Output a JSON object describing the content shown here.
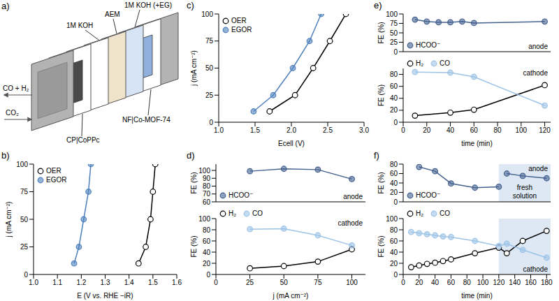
{
  "diagram": {
    "panel": "a)",
    "labels": {
      "products": "CO + H₂",
      "feed": "CO₂",
      "cathode": "CP|CoPPc",
      "catholyte": "1M KOH",
      "membrane": "AEM",
      "anolyte": "1M KOH (+EG)",
      "anode": "NF|Co-MOF-74"
    }
  },
  "chart_data": [
    {
      "panel": "b)",
      "type": "line",
      "x_label": "E (V vs. RHE −iR)",
      "y_label": "j (mA cm⁻²)",
      "xlim": [
        1.0,
        1.6
      ],
      "xticks": [
        {
          "value": 1,
          "label": "1.0"
        },
        {
          "value": 1.1,
          "label": "1.1"
        },
        {
          "value": 1.2,
          "label": "1.2"
        },
        {
          "value": 1.3,
          "label": "1.3"
        },
        {
          "value": 1.4,
          "label": "1.4"
        },
        {
          "value": 1.5,
          "label": "1.5"
        },
        {
          "value": 1.6,
          "label": "1.6"
        }
      ],
      "ylim": [
        0,
        100
      ],
      "yticks": [
        0,
        25,
        50,
        75,
        100
      ],
      "grid": false,
      "legend": "upper left",
      "series": [
        {
          "name": "OER",
          "color": "#000000",
          "marker": "open",
          "x": [
            1.44,
            1.47,
            1.49,
            1.5,
            1.51
          ],
          "values": [
            10,
            25,
            50,
            75,
            100
          ]
        },
        {
          "name": "EGOR",
          "color": "#4f81bd",
          "marker": "circle",
          "x": [
            1.17,
            1.19,
            1.21,
            1.23,
            1.24
          ],
          "values": [
            10,
            25,
            50,
            75,
            100
          ]
        }
      ]
    },
    {
      "panel": "c)",
      "type": "line",
      "x_label": "Ecell (V)",
      "y_label": "j (mA cm⁻²)",
      "xlim": [
        1.0,
        3.0
      ],
      "xticks": [
        {
          "value": 1,
          "label": "1.0"
        },
        {
          "value": 1.5,
          "label": "1.5"
        },
        {
          "value": 2,
          "label": "2.0"
        },
        {
          "value": 2.5,
          "label": "2.5"
        },
        {
          "value": 3,
          "label": "3.0"
        }
      ],
      "ylim": [
        0,
        100
      ],
      "yticks": [
        0,
        25,
        50,
        75,
        100
      ],
      "grid": false,
      "legend": "upper left",
      "series": [
        {
          "name": "OER",
          "color": "#000000",
          "marker": "open",
          "x": [
            1.7,
            2.05,
            2.3,
            2.53,
            2.75
          ],
          "values": [
            10,
            25,
            50,
            75,
            100
          ]
        },
        {
          "name": "EGOR",
          "color": "#4f81bd",
          "marker": "circle",
          "x": [
            1.48,
            1.75,
            2.02,
            2.25,
            2.41
          ],
          "values": [
            10,
            25,
            50,
            75,
            100
          ]
        }
      ]
    },
    {
      "panel": "d)",
      "type": "line",
      "x_label": "j (mA cm⁻²)",
      "xlim": [
        0,
        110
      ],
      "xticks": [
        0,
        25,
        50,
        75,
        100
      ],
      "grid": false,
      "subplots": [
        {
          "annotation": "anode",
          "y_label": "FE (%)",
          "ylim": [
            60,
            108
          ],
          "yticks": [
            60,
            70,
            80,
            90,
            100
          ],
          "legend": "lower left",
          "tick_labels": "y",
          "x": [
            25,
            50,
            75,
            100
          ],
          "series": [
            {
              "name": "HCOO⁻",
              "color": "#44618f",
              "marker": "circle",
              "values": [
                99,
                102,
                101,
                89
              ]
            }
          ]
        },
        {
          "annotation": "cathode",
          "y_label": "FE (%)",
          "ylim": [
            0,
            100
          ],
          "yticks": [
            0,
            20,
            40,
            60,
            80,
            100
          ],
          "legend": "upper left",
          "x": [
            25,
            50,
            75,
            100
          ],
          "series": [
            {
              "name": "H₂",
              "color": "#000000",
              "marker": "open",
              "values": [
                11,
                15,
                23,
                45
              ]
            },
            {
              "name": "CO",
              "color": "#9dc3e6",
              "marker": "circle",
              "values": [
                81,
                82,
                70,
                52
              ]
            }
          ]
        }
      ]
    },
    {
      "panel": "e)",
      "type": "line",
      "x_label": "time (min)",
      "xlim": [
        0,
        125
      ],
      "xticks": [
        0,
        20,
        40,
        60,
        80,
        100,
        120
      ],
      "grid": false,
      "subplots": [
        {
          "annotation": "anode",
          "y_label": "FE (%)",
          "ylim": [
            0,
            100
          ],
          "yticks": [
            0,
            25,
            50,
            75,
            100
          ],
          "legend": "lower left",
          "tick_labels": "y",
          "x": [
            10,
            20,
            30,
            40,
            50,
            60,
            120
          ],
          "series": [
            {
              "name": "HCOO⁻",
              "color": "#44618f",
              "marker": "circle",
              "values": [
                85,
                80,
                78,
                78,
                80,
                76,
                80
              ]
            }
          ]
        },
        {
          "annotation": "cathode",
          "y_label": "FE (%)",
          "ylim": [
            0,
            90
          ],
          "yticks": [
            0,
            20,
            40,
            60,
            80
          ],
          "legend": "upper left",
          "x": [
            10,
            40,
            60,
            120
          ],
          "series": [
            {
              "name": "H₂",
              "color": "#000000",
              "marker": "open",
              "values": [
                11,
                16,
                21,
                62
              ]
            },
            {
              "name": "CO",
              "color": "#9dc3e6",
              "marker": "circle",
              "values": [
                84,
                83,
                76,
                28
              ]
            }
          ]
        }
      ]
    },
    {
      "panel": "f)",
      "type": "line",
      "x_label": "time (min)",
      "xlim": [
        0,
        185
      ],
      "xticks": [
        0,
        20,
        40,
        60,
        80,
        100,
        120,
        140,
        160,
        180
      ],
      "grid": false,
      "shaded": {
        "label": "fresh solution",
        "x_range": [
          120,
          185
        ]
      },
      "subplots": [
        {
          "annotation": "anode",
          "y_label": "FE (%)",
          "ylim": [
            0,
            80
          ],
          "yticks": [
            0,
            20,
            40,
            60,
            80
          ],
          "legend": "lower left",
          "tick_labels": "y",
          "x": [
            20,
            40,
            60,
            90,
            120,
            125,
            130,
            150,
            180
          ],
          "series": [
            {
              "name": "HCOO⁻",
              "color": "#44618f",
              "marker": "circle",
              "values": [
                74,
                65,
                39,
                30,
                32,
                null,
                60,
                55,
                50
              ]
            }
          ]
        },
        {
          "annotation": "cathode",
          "y_label": "FE (%)",
          "ylim": [
            0,
            100
          ],
          "yticks": [
            0,
            20,
            40,
            60,
            80,
            100
          ],
          "legend": "upper left",
          "x": [
            10,
            20,
            30,
            40,
            50,
            60,
            90,
            120,
            130,
            150,
            180
          ],
          "series": [
            {
              "name": "H₂",
              "color": "#000000",
              "marker": "open",
              "values": [
                13,
                16,
                19,
                21,
                24,
                27,
                38,
                48,
                38,
                60,
                78
              ]
            },
            {
              "name": "CO",
              "color": "#9dc3e6",
              "marker": "circle",
              "values": [
                76,
                74,
                72,
                70,
                68,
                67,
                60,
                51,
                55,
                44,
                30
              ]
            }
          ]
        }
      ]
    }
  ]
}
